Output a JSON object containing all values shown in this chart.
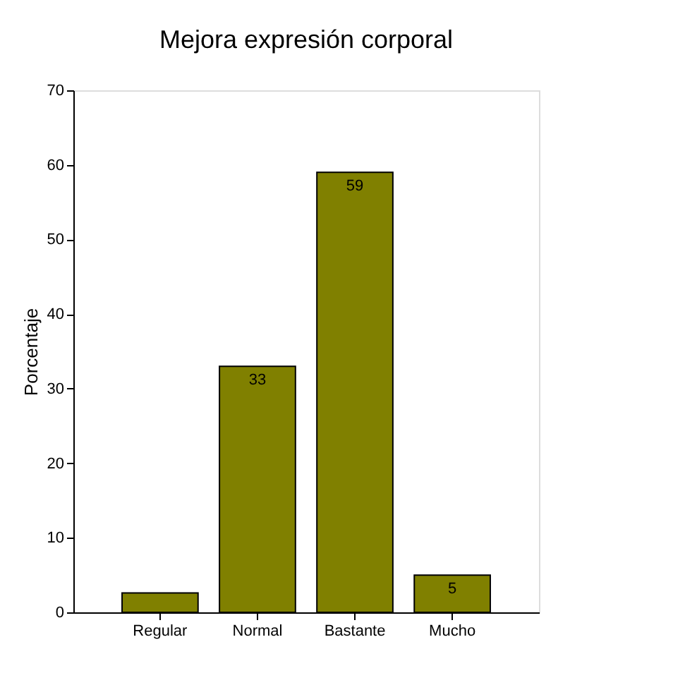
{
  "chart_data": {
    "type": "bar",
    "title": "Mejora expresión corporal",
    "ylabel": "Porcentaje",
    "categories": [
      "Regular",
      "Normal",
      "Bastante",
      "Mucho"
    ],
    "values": [
      2.6,
      33,
      59,
      5
    ],
    "value_labels": [
      null,
      "33",
      "59",
      "5"
    ],
    "color": "#808000",
    "ylim": [
      0,
      70
    ],
    "yticks": [
      0,
      10,
      20,
      30,
      40,
      50,
      60,
      70
    ],
    "grid": false
  }
}
